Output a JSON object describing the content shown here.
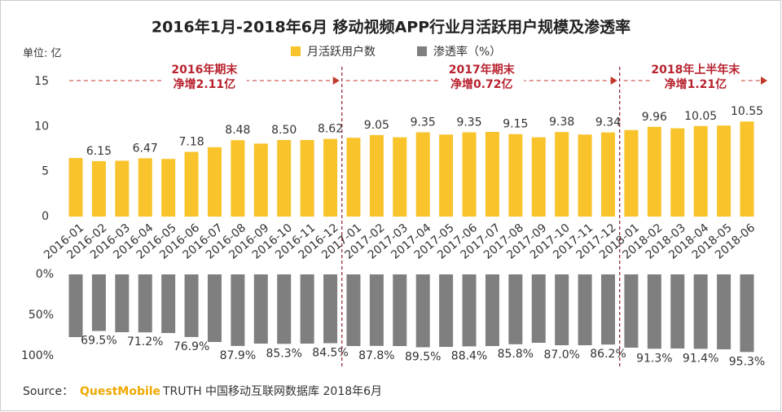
{
  "chart_data": {
    "type": "bar",
    "title": "2016年1月-2018年6月 移动视频APP行业月活跃用户规模及渗透率",
    "unit_label": "单位: 亿",
    "categories": [
      "2016-01",
      "2016-02",
      "2016-03",
      "2016-04",
      "2016-05",
      "2016-06",
      "2016-07",
      "2016-08",
      "2016-09",
      "2016-10",
      "2016-11",
      "2016-12",
      "2017-01",
      "2017-02",
      "2017-03",
      "2017-04",
      "2017-05",
      "2017-06",
      "2017-07",
      "2017-08",
      "2017-09",
      "2017-10",
      "2017-11",
      "2017-12",
      "2018-01",
      "2018-02",
      "2018-03",
      "2018-04",
      "2018-05",
      "2018-06"
    ],
    "series": [
      {
        "name": "月活跃用户数",
        "color": "#f9c32b",
        "values": [
          6.5,
          6.15,
          6.2,
          6.47,
          6.4,
          7.18,
          7.7,
          8.48,
          8.1,
          8.5,
          8.5,
          8.62,
          8.75,
          9.05,
          8.8,
          9.35,
          9.1,
          9.35,
          9.4,
          9.15,
          8.8,
          9.38,
          9.1,
          9.34,
          9.6,
          9.96,
          9.8,
          10.05,
          10.1,
          10.55
        ],
        "value_labels": [
          null,
          "6.15",
          null,
          "6.47",
          null,
          "7.18",
          null,
          "8.48",
          null,
          "8.50",
          null,
          "8.62",
          null,
          "9.05",
          null,
          "9.35",
          null,
          "9.35",
          null,
          "9.15",
          null,
          "9.38",
          null,
          "9.34",
          null,
          "9.96",
          null,
          "10.05",
          null,
          "10.55"
        ]
      },
      {
        "name": "渗透率（%）",
        "color": "#7f7f7f",
        "axis": "y2",
        "values": [
          77,
          69.5,
          71,
          71.2,
          72,
          76.9,
          83,
          87.9,
          85,
          85.3,
          85,
          84.5,
          88,
          87.8,
          88,
          89.5,
          89,
          88.4,
          88,
          85.8,
          84,
          87.0,
          87,
          86.2,
          90,
          91.3,
          91,
          91.4,
          92,
          95.3
        ],
        "value_labels": [
          null,
          "69.5%",
          null,
          "71.2%",
          null,
          "76.9%",
          null,
          "87.9%",
          null,
          "85.3%",
          null,
          "84.5%",
          null,
          "87.8%",
          null,
          "89.5%",
          null,
          "88.4%",
          null,
          "85.8%",
          null,
          "87.0%",
          null,
          "86.2%",
          null,
          "91.3%",
          null,
          "91.4%",
          null,
          "95.3%"
        ]
      }
    ],
    "ylim": [
      0,
      15
    ],
    "yticks": [
      0,
      5,
      10,
      15
    ],
    "y2lim": [
      0,
      100
    ],
    "y2ticks": [
      {
        "value": 0,
        "label": "0%"
      },
      {
        "value": 50,
        "label": "50%"
      },
      {
        "value": 100,
        "label": "100%"
      }
    ],
    "annotations": [
      {
        "lines": [
          "2016年期末",
          "净增2.11亿"
        ]
      },
      {
        "lines": [
          "2017年期末",
          "净增0.72亿"
        ]
      },
      {
        "lines": [
          "2018年上半年末",
          "净增1.21亿"
        ]
      }
    ],
    "source": [
      "Source：",
      "QuestMobile",
      "TRUTH 中国移动互联网数据库 2018年6月"
    ]
  }
}
